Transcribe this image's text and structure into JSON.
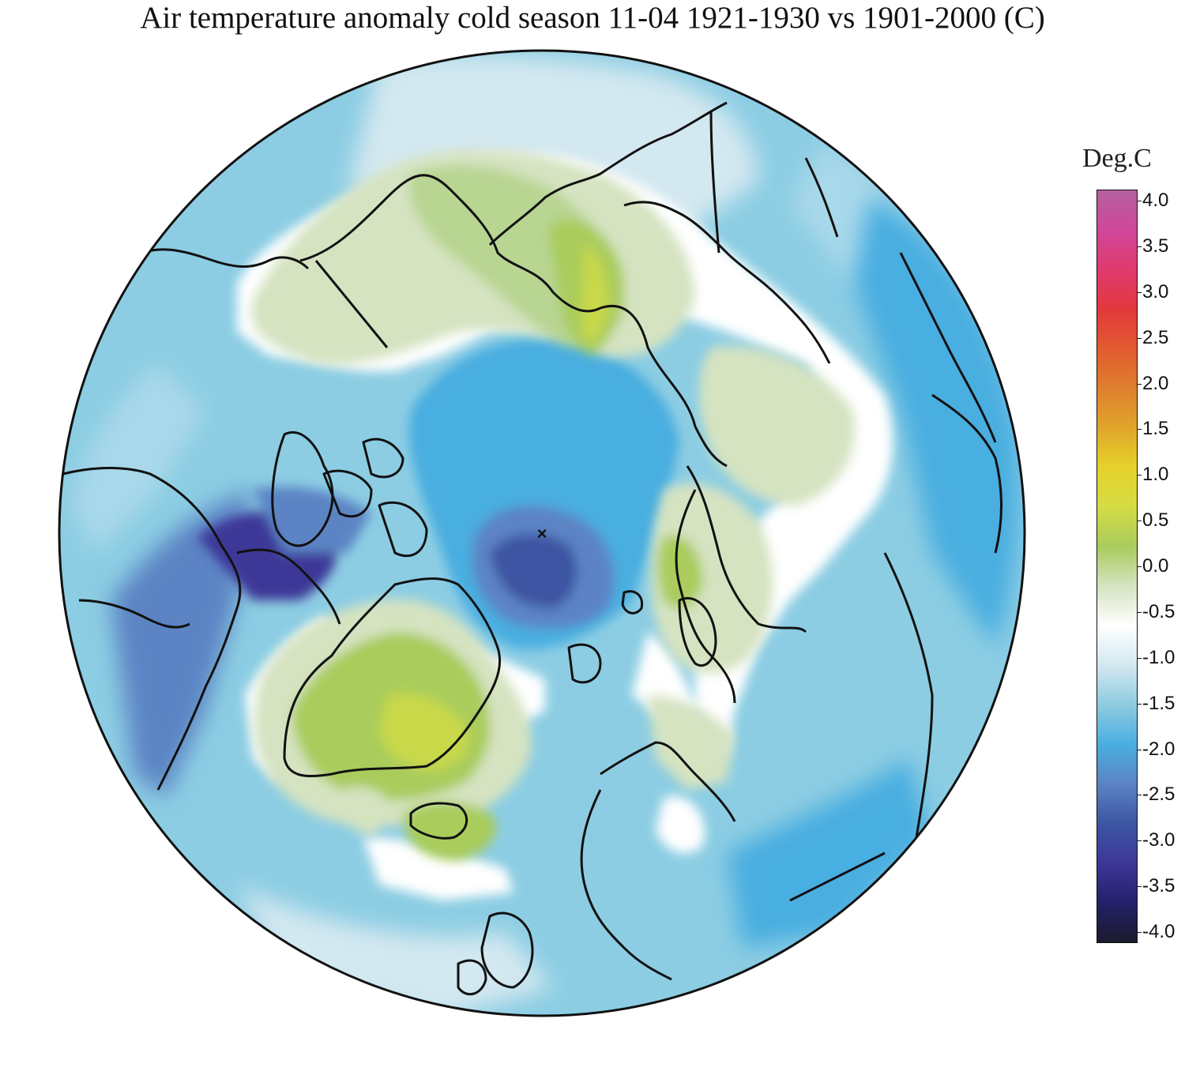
{
  "title": "Air temperature anomaly cold season 11-04 1921-1930 vs 1901-2000 (C)",
  "legend": {
    "title": "Deg.C",
    "ticks": [
      "4.0",
      "3.5",
      "3.0",
      "2.5",
      "2.0",
      "1.5",
      "1.0",
      "0.5",
      "0.0",
      "-0.5",
      "-1.0",
      "-1.5",
      "-2.0",
      "-2.5",
      "-3.0",
      "-3.5",
      "-4.0"
    ],
    "colors": [
      "#b4619f",
      "#d0479a",
      "#e03a6e",
      "#e2383c",
      "#e25a30",
      "#df7f2e",
      "#e0a52a",
      "#e6d22a",
      "#d4dc45",
      "#a9cc5c",
      "#d5e3c1",
      "#ffffff",
      "#d3e8f0",
      "#8ecbe0",
      "#4aaee0",
      "#5b84c4",
      "#3c55a2",
      "#3d3797",
      "#24206a",
      "#1b1b2c"
    ]
  },
  "map": {
    "projection": "north-polar-stereographic",
    "ocean_base_color": "#8ccde3",
    "pole_marker": "×"
  }
}
